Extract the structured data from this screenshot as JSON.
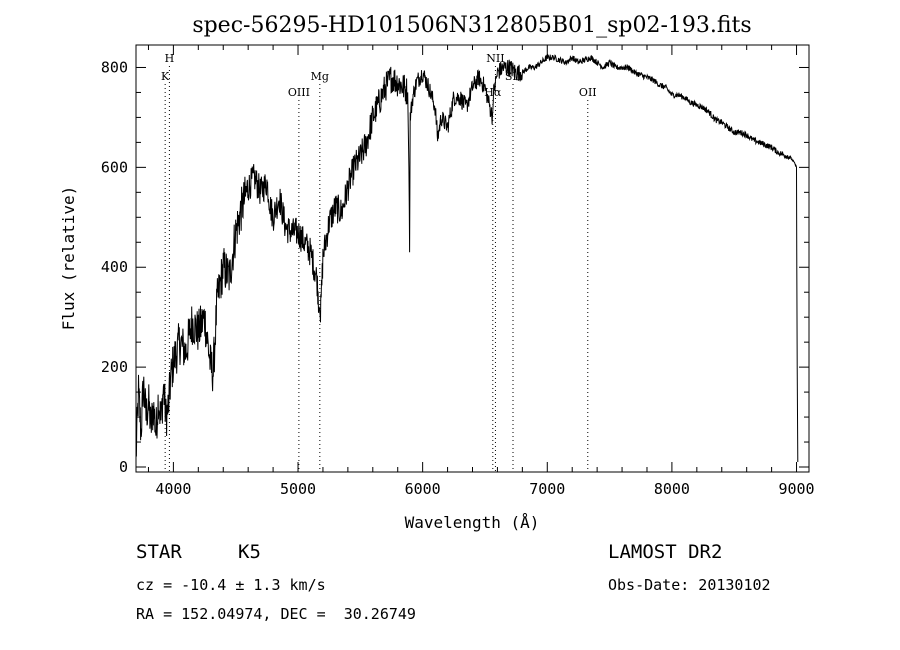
{
  "chart_data": {
    "type": "line",
    "title": "spec-56295-HD101506N312805B01_sp02-193.fits",
    "xlabel": "Wavelength (Å)",
    "ylabel": "Flux (relative)",
    "xlim": [
      3700,
      9100
    ],
    "ylim": [
      -10,
      845
    ],
    "x_ticks": [
      4000,
      5000,
      6000,
      7000,
      8000,
      9000
    ],
    "y_ticks": [
      0,
      200,
      400,
      600,
      800
    ],
    "grid": false,
    "series": [
      {
        "x": [
          3700,
          3720,
          3740,
          3760,
          3780,
          3800,
          3820,
          3840,
          3860,
          3880,
          3900,
          3920,
          3940,
          3960,
          3980,
          4000,
          4050,
          4100,
          4150,
          4200,
          4250,
          4300,
          4320,
          4350,
          4400,
          4450,
          4500,
          4550,
          4600,
          4650,
          4700,
          4750,
          4780,
          4800,
          4850,
          4900,
          4950,
          5000,
          5050,
          5100,
          5150,
          5170,
          5180,
          5200,
          5250,
          5300,
          5350,
          5400,
          5450,
          5500,
          5550,
          5600,
          5650,
          5700,
          5750,
          5800,
          5850,
          5880,
          5890,
          5895,
          5900,
          5920,
          5950,
          6000,
          6050,
          6100,
          6120,
          6150,
          6200,
          6250,
          6300,
          6350,
          6400,
          6450,
          6500,
          6540,
          6560,
          6570,
          6600,
          6650,
          6700,
          6750,
          6800,
          6850,
          6900,
          6950,
          7000,
          7050,
          7100,
          7150,
          7200,
          7250,
          7300,
          7350,
          7400,
          7450,
          7500,
          7550,
          7600,
          7650,
          7700,
          7750,
          7800,
          7850,
          7900,
          7950,
          8000,
          8050,
          8100,
          8150,
          8200,
          8250,
          8300,
          8350,
          8400,
          8450,
          8500,
          8550,
          8600,
          8650,
          8700,
          8750,
          8800,
          8850,
          8900,
          8950,
          8980,
          9000,
          9005,
          9010
        ],
        "y": [
          20,
          150,
          70,
          170,
          100,
          130,
          80,
          120,
          70,
          140,
          90,
          160,
          100,
          120,
          180,
          210,
          250,
          230,
          290,
          270,
          300,
          200,
          190,
          330,
          400,
          380,
          470,
          520,
          560,
          580,
          550,
          570,
          520,
          500,
          540,
          480,
          470,
          470,
          450,
          430,
          380,
          320,
          300,
          420,
          490,
          520,
          510,
          560,
          600,
          620,
          650,
          700,
          730,
          760,
          780,
          770,
          760,
          750,
          600,
          430,
          700,
          740,
          770,
          790,
          760,
          720,
          660,
          700,
          680,
          740,
          740,
          720,
          760,
          780,
          760,
          720,
          700,
          750,
          790,
          800,
          800,
          790,
          790,
          800,
          800,
          810,
          820,
          820,
          815,
          810,
          820,
          810,
          815,
          820,
          810,
          800,
          810,
          800,
          800,
          800,
          790,
          785,
          780,
          775,
          765,
          760,
          745,
          745,
          740,
          730,
          725,
          720,
          710,
          695,
          690,
          680,
          670,
          670,
          665,
          655,
          650,
          645,
          640,
          630,
          625,
          620,
          610,
          600,
          200,
          10
        ]
      }
    ],
    "line_markers": [
      {
        "label": "H",
        "x": 3968,
        "level": 1
      },
      {
        "label": "K",
        "x": 3934,
        "level": 2
      },
      {
        "label": "OIII",
        "x": 5007,
        "level": 3
      },
      {
        "label": "Mg",
        "x": 5175,
        "level": 2
      },
      {
        "label": "NII",
        "x": 6584,
        "level": 1
      },
      {
        "label": "Hα",
        "x": 6563,
        "level": 3
      },
      {
        "label": "OII",
        "x": 7325,
        "level": 3
      },
      {
        "label": "SII",
        "x": 6725,
        "level": 2
      }
    ]
  },
  "info": {
    "object_type": "STAR",
    "subclass": "K5",
    "cz": "cz = -10.4 ± 1.3 km/s",
    "coords": "RA = 152.04974, DEC =  30.26749",
    "survey": "LAMOST DR2",
    "obs_date": "Obs-Date: 20130102"
  }
}
